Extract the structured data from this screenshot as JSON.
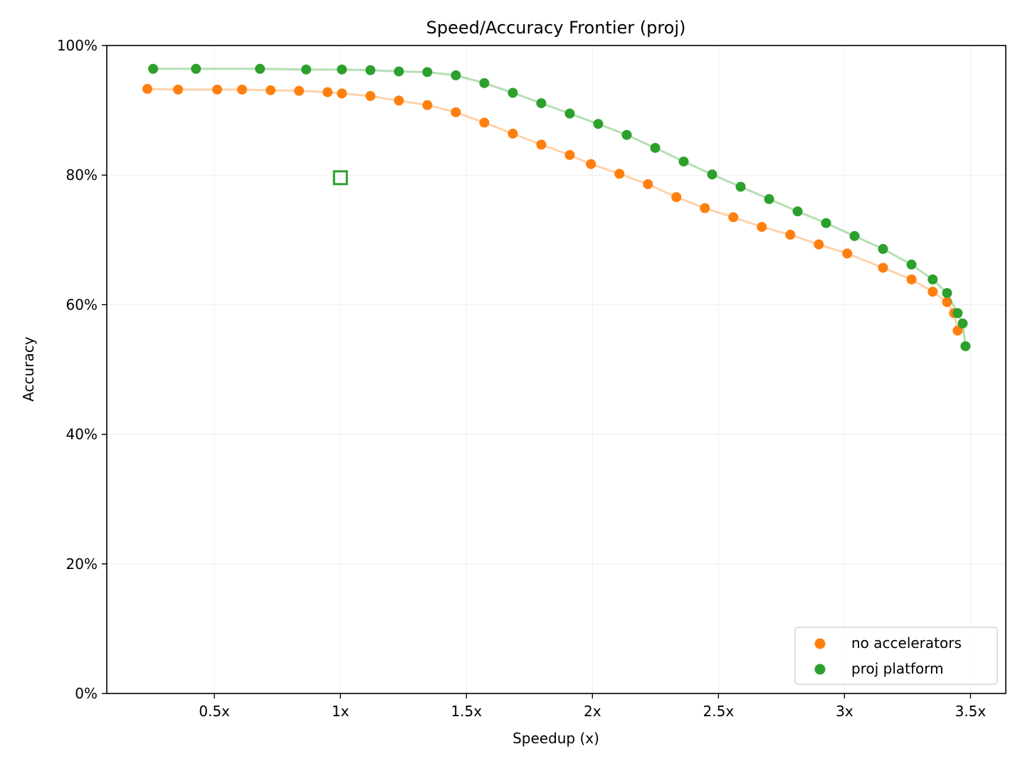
{
  "chart_data": {
    "type": "scatter",
    "title": "Speed/Accuracy Frontier (proj)",
    "xlabel": "Speedup (x)",
    "ylabel": "Accuracy",
    "xlim": [
      0.073,
      3.64
    ],
    "ylim": [
      0,
      100
    ],
    "grid": true,
    "legend_placement": "lower-right",
    "xticks": [
      0.5,
      1,
      1.5,
      2,
      2.5,
      3,
      3.5
    ],
    "xtick_labels": [
      "0.5x",
      "1x",
      "1.5x",
      "2x",
      "2.5x",
      "3x",
      "3.5x"
    ],
    "yticks": [
      0,
      20,
      40,
      60,
      80,
      100
    ],
    "ytick_labels": [
      "0%",
      "20%",
      "40%",
      "60%",
      "80%",
      "100%"
    ],
    "series": [
      {
        "name": "no accelerators",
        "color": "#ff7f0e",
        "x": [
          0.234,
          0.356,
          0.511,
          0.61,
          0.723,
          0.836,
          0.949,
          1.006,
          1.119,
          1.232,
          1.345,
          1.458,
          1.571,
          1.684,
          1.797,
          1.91,
          1.994,
          2.107,
          2.22,
          2.333,
          2.446,
          2.559,
          2.672,
          2.785,
          2.898,
          3.011,
          3.153,
          3.266,
          3.35,
          3.407,
          3.435,
          3.449
        ],
        "y": [
          93.3,
          93.2,
          93.2,
          93.2,
          93.1,
          93.0,
          92.8,
          92.6,
          92.2,
          91.5,
          90.8,
          89.7,
          88.1,
          86.4,
          84.7,
          83.1,
          81.7,
          80.2,
          78.6,
          76.6,
          74.9,
          73.5,
          72.0,
          70.8,
          69.3,
          67.9,
          65.7,
          63.9,
          62.0,
          60.4,
          58.7,
          56.0
        ]
      },
      {
        "name": "proj platform",
        "color": "#2ca02c",
        "x": [
          0.257,
          0.427,
          0.681,
          0.864,
          1.006,
          1.119,
          1.232,
          1.345,
          1.458,
          1.571,
          1.684,
          1.797,
          1.91,
          2.023,
          2.136,
          2.249,
          2.362,
          2.475,
          2.588,
          2.701,
          2.814,
          2.927,
          3.04,
          3.153,
          3.266,
          3.35,
          3.407,
          3.449,
          3.469,
          3.48
        ],
        "y": [
          96.4,
          96.4,
          96.4,
          96.3,
          96.3,
          96.2,
          96.0,
          95.9,
          95.4,
          94.2,
          92.7,
          91.1,
          89.5,
          87.9,
          86.2,
          84.2,
          82.1,
          80.1,
          78.2,
          76.3,
          74.4,
          72.6,
          70.6,
          68.6,
          66.2,
          63.9,
          61.8,
          58.7,
          57.1,
          53.6
        ]
      }
    ],
    "annotations": [
      {
        "marker": "hollow-square",
        "color": "#2ca02c",
        "x": 1.0,
        "y": 79.6
      }
    ]
  }
}
